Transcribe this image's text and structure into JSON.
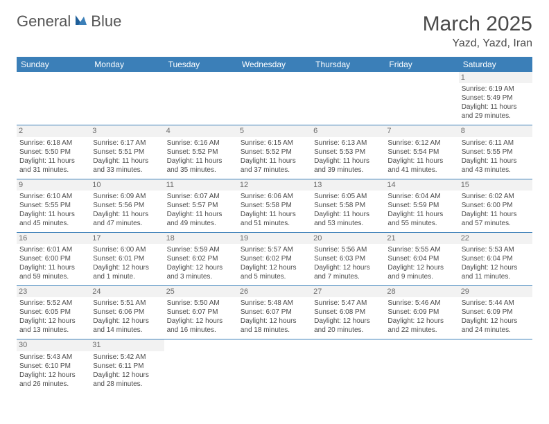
{
  "brand": {
    "part1": "General",
    "part2": "Blue"
  },
  "title": "March 2025",
  "location": "Yazd, Yazd, Iran",
  "colors": {
    "header_bg": "#3b7fb8",
    "header_fg": "#ffffff",
    "text": "#4a4a4a",
    "daynum_bg": "#f2f2f2",
    "border": "#3b7fb8"
  },
  "weekdays": [
    "Sunday",
    "Monday",
    "Tuesday",
    "Wednesday",
    "Thursday",
    "Friday",
    "Saturday"
  ],
  "weeks": [
    [
      null,
      null,
      null,
      null,
      null,
      null,
      {
        "day": "1",
        "sunrise": "Sunrise: 6:19 AM",
        "sunset": "Sunset: 5:49 PM",
        "daylight": "Daylight: 11 hours and 29 minutes."
      }
    ],
    [
      {
        "day": "2",
        "sunrise": "Sunrise: 6:18 AM",
        "sunset": "Sunset: 5:50 PM",
        "daylight": "Daylight: 11 hours and 31 minutes."
      },
      {
        "day": "3",
        "sunrise": "Sunrise: 6:17 AM",
        "sunset": "Sunset: 5:51 PM",
        "daylight": "Daylight: 11 hours and 33 minutes."
      },
      {
        "day": "4",
        "sunrise": "Sunrise: 6:16 AM",
        "sunset": "Sunset: 5:52 PM",
        "daylight": "Daylight: 11 hours and 35 minutes."
      },
      {
        "day": "5",
        "sunrise": "Sunrise: 6:15 AM",
        "sunset": "Sunset: 5:52 PM",
        "daylight": "Daylight: 11 hours and 37 minutes."
      },
      {
        "day": "6",
        "sunrise": "Sunrise: 6:13 AM",
        "sunset": "Sunset: 5:53 PM",
        "daylight": "Daylight: 11 hours and 39 minutes."
      },
      {
        "day": "7",
        "sunrise": "Sunrise: 6:12 AM",
        "sunset": "Sunset: 5:54 PM",
        "daylight": "Daylight: 11 hours and 41 minutes."
      },
      {
        "day": "8",
        "sunrise": "Sunrise: 6:11 AM",
        "sunset": "Sunset: 5:55 PM",
        "daylight": "Daylight: 11 hours and 43 minutes."
      }
    ],
    [
      {
        "day": "9",
        "sunrise": "Sunrise: 6:10 AM",
        "sunset": "Sunset: 5:55 PM",
        "daylight": "Daylight: 11 hours and 45 minutes."
      },
      {
        "day": "10",
        "sunrise": "Sunrise: 6:09 AM",
        "sunset": "Sunset: 5:56 PM",
        "daylight": "Daylight: 11 hours and 47 minutes."
      },
      {
        "day": "11",
        "sunrise": "Sunrise: 6:07 AM",
        "sunset": "Sunset: 5:57 PM",
        "daylight": "Daylight: 11 hours and 49 minutes."
      },
      {
        "day": "12",
        "sunrise": "Sunrise: 6:06 AM",
        "sunset": "Sunset: 5:58 PM",
        "daylight": "Daylight: 11 hours and 51 minutes."
      },
      {
        "day": "13",
        "sunrise": "Sunrise: 6:05 AM",
        "sunset": "Sunset: 5:58 PM",
        "daylight": "Daylight: 11 hours and 53 minutes."
      },
      {
        "day": "14",
        "sunrise": "Sunrise: 6:04 AM",
        "sunset": "Sunset: 5:59 PM",
        "daylight": "Daylight: 11 hours and 55 minutes."
      },
      {
        "day": "15",
        "sunrise": "Sunrise: 6:02 AM",
        "sunset": "Sunset: 6:00 PM",
        "daylight": "Daylight: 11 hours and 57 minutes."
      }
    ],
    [
      {
        "day": "16",
        "sunrise": "Sunrise: 6:01 AM",
        "sunset": "Sunset: 6:00 PM",
        "daylight": "Daylight: 11 hours and 59 minutes."
      },
      {
        "day": "17",
        "sunrise": "Sunrise: 6:00 AM",
        "sunset": "Sunset: 6:01 PM",
        "daylight": "Daylight: 12 hours and 1 minute."
      },
      {
        "day": "18",
        "sunrise": "Sunrise: 5:59 AM",
        "sunset": "Sunset: 6:02 PM",
        "daylight": "Daylight: 12 hours and 3 minutes."
      },
      {
        "day": "19",
        "sunrise": "Sunrise: 5:57 AM",
        "sunset": "Sunset: 6:02 PM",
        "daylight": "Daylight: 12 hours and 5 minutes."
      },
      {
        "day": "20",
        "sunrise": "Sunrise: 5:56 AM",
        "sunset": "Sunset: 6:03 PM",
        "daylight": "Daylight: 12 hours and 7 minutes."
      },
      {
        "day": "21",
        "sunrise": "Sunrise: 5:55 AM",
        "sunset": "Sunset: 6:04 PM",
        "daylight": "Daylight: 12 hours and 9 minutes."
      },
      {
        "day": "22",
        "sunrise": "Sunrise: 5:53 AM",
        "sunset": "Sunset: 6:04 PM",
        "daylight": "Daylight: 12 hours and 11 minutes."
      }
    ],
    [
      {
        "day": "23",
        "sunrise": "Sunrise: 5:52 AM",
        "sunset": "Sunset: 6:05 PM",
        "daylight": "Daylight: 12 hours and 13 minutes."
      },
      {
        "day": "24",
        "sunrise": "Sunrise: 5:51 AM",
        "sunset": "Sunset: 6:06 PM",
        "daylight": "Daylight: 12 hours and 14 minutes."
      },
      {
        "day": "25",
        "sunrise": "Sunrise: 5:50 AM",
        "sunset": "Sunset: 6:07 PM",
        "daylight": "Daylight: 12 hours and 16 minutes."
      },
      {
        "day": "26",
        "sunrise": "Sunrise: 5:48 AM",
        "sunset": "Sunset: 6:07 PM",
        "daylight": "Daylight: 12 hours and 18 minutes."
      },
      {
        "day": "27",
        "sunrise": "Sunrise: 5:47 AM",
        "sunset": "Sunset: 6:08 PM",
        "daylight": "Daylight: 12 hours and 20 minutes."
      },
      {
        "day": "28",
        "sunrise": "Sunrise: 5:46 AM",
        "sunset": "Sunset: 6:09 PM",
        "daylight": "Daylight: 12 hours and 22 minutes."
      },
      {
        "day": "29",
        "sunrise": "Sunrise: 5:44 AM",
        "sunset": "Sunset: 6:09 PM",
        "daylight": "Daylight: 12 hours and 24 minutes."
      }
    ],
    [
      {
        "day": "30",
        "sunrise": "Sunrise: 5:43 AM",
        "sunset": "Sunset: 6:10 PM",
        "daylight": "Daylight: 12 hours and 26 minutes."
      },
      {
        "day": "31",
        "sunrise": "Sunrise: 5:42 AM",
        "sunset": "Sunset: 6:11 PM",
        "daylight": "Daylight: 12 hours and 28 minutes."
      },
      null,
      null,
      null,
      null,
      null
    ]
  ]
}
